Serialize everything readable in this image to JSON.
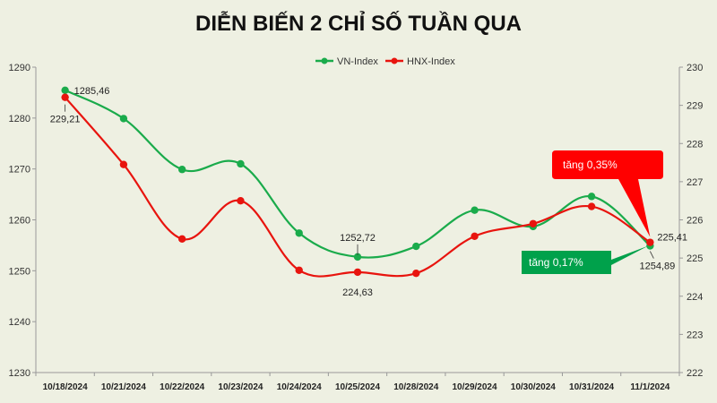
{
  "chart_data": {
    "type": "line",
    "title": "DIỄN BIẾN 2 CHỈ SỐ TUẦN QUA",
    "categories": [
      "10/18/2024",
      "10/21/2024",
      "10/22/2024",
      "10/23/2024",
      "10/24/2024",
      "10/25/2024",
      "10/28/2024",
      "10/29/2024",
      "10/30/2024",
      "10/31/2024",
      "11/1/2024"
    ],
    "series": [
      {
        "name": "VN-Index",
        "axis": "left",
        "color": "#1aab4b",
        "values": [
          1285.46,
          1279.9,
          1269.9,
          1271.0,
          1257.4,
          1252.72,
          1254.8,
          1261.9,
          1258.7,
          1264.6,
          1254.89
        ]
      },
      {
        "name": "HNX-Index",
        "axis": "right",
        "color": "#e8140e",
        "values": [
          229.21,
          227.45,
          225.5,
          226.5,
          224.68,
          224.63,
          224.6,
          225.57,
          225.9,
          226.35,
          225.41
        ]
      }
    ],
    "left_axis": {
      "min": 1230,
      "max": 1290,
      "ticks": [
        1230,
        1240,
        1250,
        1260,
        1270,
        1280,
        1290
      ]
    },
    "right_axis": {
      "min": 222,
      "max": 230,
      "ticks": [
        222,
        223,
        224,
        225,
        226,
        227,
        228,
        229,
        230
      ]
    },
    "legend_position": "top-center",
    "grid": false,
    "data_labels": [
      {
        "series": 0,
        "index": 0,
        "text": "1285,46"
      },
      {
        "series": 1,
        "index": 0,
        "text": "229,21"
      },
      {
        "series": 0,
        "index": 5,
        "text": "1252,72"
      },
      {
        "series": 1,
        "index": 5,
        "text": "224,63"
      },
      {
        "series": 1,
        "index": 10,
        "text": "225,41"
      },
      {
        "series": 0,
        "index": 10,
        "text": "1254,89"
      }
    ],
    "annotations": [
      {
        "text": "tăng 0,35%",
        "series": 1,
        "color": "#ff0000",
        "text_color": "#ffffff"
      },
      {
        "text": "tăng 0,17%",
        "series": 0,
        "color": "#00a14b",
        "text_color": "#ffffff"
      }
    ]
  }
}
